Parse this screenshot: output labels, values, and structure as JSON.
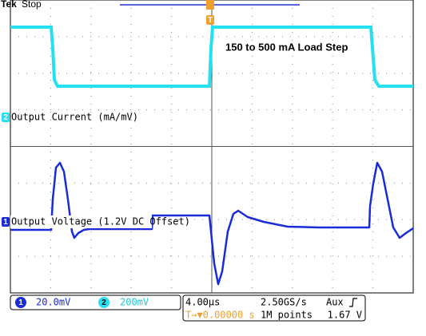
{
  "header": {
    "brand": "Tek",
    "status": "Stop"
  },
  "trigger_marker": "T",
  "annotation": "150 to 500 mA Load Step",
  "channels": [
    {
      "marker": "2",
      "label": "Output Current (mA/mV)"
    },
    {
      "marker": "1",
      "label": "Output Voltage (1.2V DC Offset)"
    }
  ],
  "status_bar": {
    "ch1": {
      "marker": "1",
      "scale": "20.0mV"
    },
    "ch2": {
      "marker": "2",
      "scale": "200mV"
    },
    "timebase": "4.00µs",
    "sample_rate": "2.50GS/s",
    "trigger_source": "Aux",
    "trigger_position": "T→▼0.00000 s",
    "record_length": "1M points",
    "trigger_level": "1.67 V"
  }
}
